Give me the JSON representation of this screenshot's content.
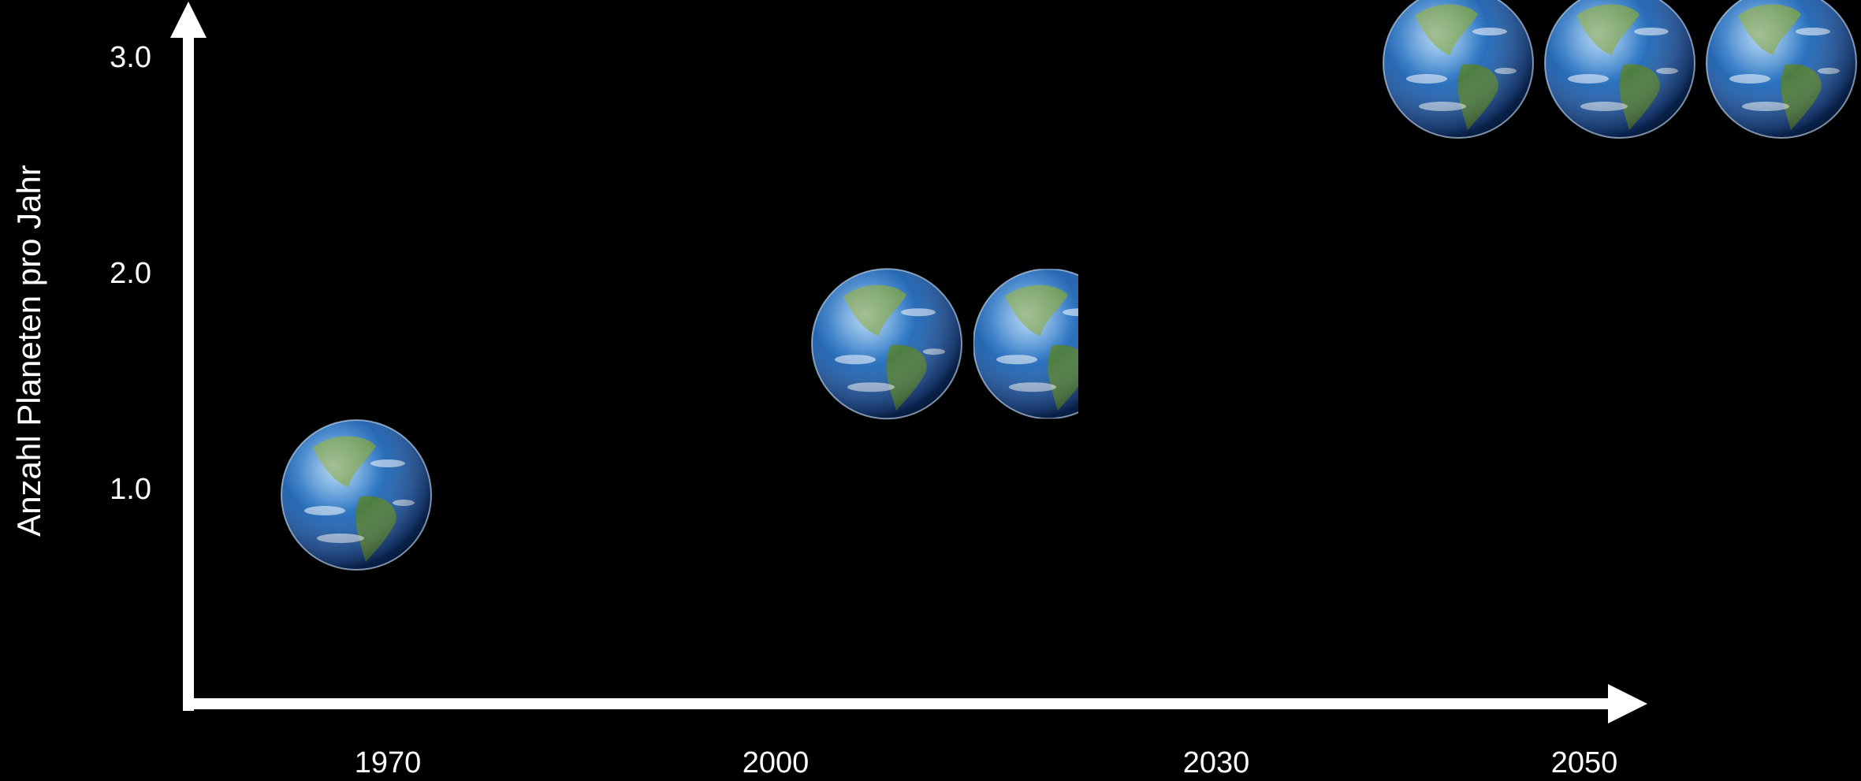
{
  "chart_data": {
    "type": "pictogram",
    "title": "",
    "xlabel": "",
    "ylabel": "Anzahl Planeten pro Jahr",
    "x_categories": [
      "1970",
      "2000",
      "2030",
      "2050"
    ],
    "y_ticks": [
      "1.0",
      "2.0",
      "3.0"
    ],
    "ylim": [
      0,
      3.2
    ],
    "grid": false,
    "legend": "none",
    "points": [
      {
        "x": "1970",
        "value": 1.0
      },
      {
        "x": "2000",
        "value": 1.7
      },
      {
        "x": "2050",
        "value": 3.0
      }
    ],
    "colors": {
      "background": "#000000",
      "axis": "#ffffff",
      "text": "#ffffff",
      "ocean": "#2b6fb8",
      "land": "#4f7d3a"
    },
    "icon": "earth-globe-icon"
  }
}
